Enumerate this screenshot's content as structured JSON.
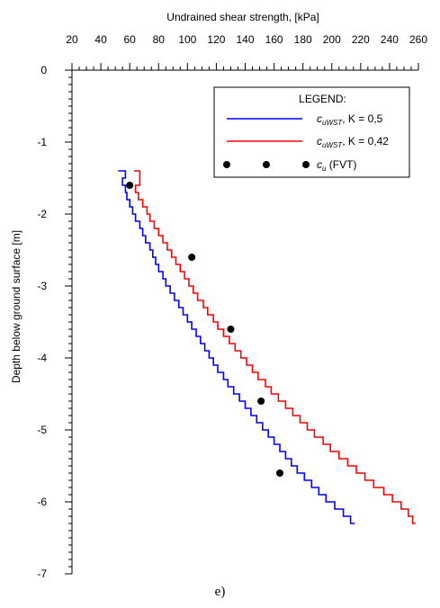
{
  "chart_data": {
    "type": "line",
    "title": "",
    "xlabel": "Undrained shear strength, [kPa]",
    "ylabel": "Depth below ground surface [m]",
    "xlim": [
      20,
      260
    ],
    "ylim": [
      -7,
      0
    ],
    "x_axis_position": "top",
    "x_ticks": [
      20,
      40,
      60,
      80,
      100,
      120,
      140,
      160,
      180,
      200,
      220,
      240,
      260
    ],
    "y_ticks": [
      0,
      -1,
      -2,
      -3,
      -4,
      -5,
      -6,
      -7
    ],
    "legend": {
      "title": "LEGEND:",
      "placement": "top-right"
    },
    "series": [
      {
        "name_main": "c",
        "name_sub": "uWST",
        "name_rest": ", K = 0,5",
        "color": "#0000ff",
        "style": "step-line",
        "points": [
          [
            52,
            -1.4
          ],
          [
            57,
            -1.4
          ],
          [
            57,
            -1.5
          ],
          [
            55,
            -1.5
          ],
          [
            55,
            -1.6
          ],
          [
            57,
            -1.6
          ],
          [
            57,
            -1.7
          ],
          [
            58,
            -1.7
          ],
          [
            58,
            -1.8
          ],
          [
            60,
            -1.8
          ],
          [
            60,
            -1.9
          ],
          [
            62,
            -1.9
          ],
          [
            62,
            -2.0
          ],
          [
            64,
            -2.0
          ],
          [
            64,
            -2.1
          ],
          [
            67,
            -2.1
          ],
          [
            67,
            -2.2
          ],
          [
            69,
            -2.2
          ],
          [
            69,
            -2.3
          ],
          [
            71,
            -2.3
          ],
          [
            71,
            -2.4
          ],
          [
            74,
            -2.4
          ],
          [
            74,
            -2.5
          ],
          [
            76,
            -2.5
          ],
          [
            76,
            -2.6
          ],
          [
            78,
            -2.6
          ],
          [
            78,
            -2.7
          ],
          [
            80,
            -2.7
          ],
          [
            80,
            -2.8
          ],
          [
            83,
            -2.8
          ],
          [
            83,
            -2.9
          ],
          [
            85,
            -2.9
          ],
          [
            85,
            -3.0
          ],
          [
            88,
            -3.0
          ],
          [
            88,
            -3.1
          ],
          [
            91,
            -3.1
          ],
          [
            91,
            -3.2
          ],
          [
            94,
            -3.2
          ],
          [
            94,
            -3.3
          ],
          [
            97,
            -3.3
          ],
          [
            97,
            -3.4
          ],
          [
            100,
            -3.4
          ],
          [
            100,
            -3.5
          ],
          [
            103,
            -3.5
          ],
          [
            103,
            -3.6
          ],
          [
            106,
            -3.6
          ],
          [
            106,
            -3.7
          ],
          [
            109,
            -3.7
          ],
          [
            109,
            -3.8
          ],
          [
            112,
            -3.8
          ],
          [
            112,
            -3.9
          ],
          [
            115,
            -3.9
          ],
          [
            115,
            -4.0
          ],
          [
            118,
            -4.0
          ],
          [
            118,
            -4.1
          ],
          [
            121,
            -4.1
          ],
          [
            121,
            -4.2
          ],
          [
            125,
            -4.2
          ],
          [
            125,
            -4.3
          ],
          [
            128,
            -4.3
          ],
          [
            128,
            -4.4
          ],
          [
            132,
            -4.4
          ],
          [
            132,
            -4.5
          ],
          [
            136,
            -4.5
          ],
          [
            136,
            -4.6
          ],
          [
            140,
            -4.6
          ],
          [
            140,
            -4.7
          ],
          [
            144,
            -4.7
          ],
          [
            144,
            -4.8
          ],
          [
            148,
            -4.8
          ],
          [
            148,
            -4.9
          ],
          [
            152,
            -4.9
          ],
          [
            152,
            -5.0
          ],
          [
            156,
            -5.0
          ],
          [
            156,
            -5.1
          ],
          [
            160,
            -5.1
          ],
          [
            160,
            -5.2
          ],
          [
            164,
            -5.2
          ],
          [
            164,
            -5.3
          ],
          [
            168,
            -5.3
          ],
          [
            168,
            -5.4
          ],
          [
            172,
            -5.4
          ],
          [
            172,
            -5.5
          ],
          [
            176,
            -5.5
          ],
          [
            176,
            -5.6
          ],
          [
            181,
            -5.6
          ],
          [
            181,
            -5.7
          ],
          [
            186,
            -5.7
          ],
          [
            186,
            -5.8
          ],
          [
            191,
            -5.8
          ],
          [
            191,
            -5.9
          ],
          [
            196,
            -5.9
          ],
          [
            196,
            -6.0
          ],
          [
            202,
            -6.0
          ],
          [
            202,
            -6.1
          ],
          [
            208,
            -6.1
          ],
          [
            208,
            -6.2
          ],
          [
            213,
            -6.2
          ],
          [
            213,
            -6.3
          ],
          [
            216,
            -6.3
          ]
        ]
      },
      {
        "name_main": "c",
        "name_sub": "uWST",
        "name_rest": ", K = 0,42",
        "color": "#ff0000",
        "style": "step-line",
        "points": [
          [
            63,
            -1.4
          ],
          [
            67,
            -1.4
          ],
          [
            67,
            -1.6
          ],
          [
            64,
            -1.6
          ],
          [
            64,
            -1.7
          ],
          [
            66,
            -1.7
          ],
          [
            66,
            -1.8
          ],
          [
            69,
            -1.8
          ],
          [
            69,
            -1.9
          ],
          [
            72,
            -1.9
          ],
          [
            72,
            -2.0
          ],
          [
            74,
            -2.0
          ],
          [
            74,
            -2.1
          ],
          [
            77,
            -2.1
          ],
          [
            77,
            -2.2
          ],
          [
            80,
            -2.2
          ],
          [
            80,
            -2.3
          ],
          [
            83,
            -2.3
          ],
          [
            83,
            -2.4
          ],
          [
            86,
            -2.4
          ],
          [
            86,
            -2.5
          ],
          [
            89,
            -2.5
          ],
          [
            89,
            -2.6
          ],
          [
            92,
            -2.6
          ],
          [
            92,
            -2.7
          ],
          [
            95,
            -2.7
          ],
          [
            95,
            -2.8
          ],
          [
            98,
            -2.8
          ],
          [
            98,
            -2.9
          ],
          [
            101,
            -2.9
          ],
          [
            101,
            -3.0
          ],
          [
            104,
            -3.0
          ],
          [
            104,
            -3.1
          ],
          [
            107,
            -3.1
          ],
          [
            107,
            -3.2
          ],
          [
            111,
            -3.2
          ],
          [
            111,
            -3.3
          ],
          [
            114,
            -3.3
          ],
          [
            114,
            -3.4
          ],
          [
            118,
            -3.4
          ],
          [
            118,
            -3.5
          ],
          [
            121,
            -3.5
          ],
          [
            121,
            -3.6
          ],
          [
            125,
            -3.6
          ],
          [
            125,
            -3.7
          ],
          [
            129,
            -3.7
          ],
          [
            129,
            -3.8
          ],
          [
            133,
            -3.8
          ],
          [
            133,
            -3.9
          ],
          [
            137,
            -3.9
          ],
          [
            137,
            -4.0
          ],
          [
            141,
            -4.0
          ],
          [
            141,
            -4.1
          ],
          [
            145,
            -4.1
          ],
          [
            145,
            -4.2
          ],
          [
            149,
            -4.2
          ],
          [
            149,
            -4.3
          ],
          [
            154,
            -4.3
          ],
          [
            154,
            -4.4
          ],
          [
            158,
            -4.4
          ],
          [
            158,
            -4.5
          ],
          [
            163,
            -4.5
          ],
          [
            163,
            -4.6
          ],
          [
            168,
            -4.6
          ],
          [
            168,
            -4.7
          ],
          [
            173,
            -4.7
          ],
          [
            173,
            -4.8
          ],
          [
            178,
            -4.8
          ],
          [
            178,
            -4.9
          ],
          [
            183,
            -4.9
          ],
          [
            183,
            -5.0
          ],
          [
            188,
            -5.0
          ],
          [
            188,
            -5.1
          ],
          [
            194,
            -5.1
          ],
          [
            194,
            -5.2
          ],
          [
            199,
            -5.2
          ],
          [
            199,
            -5.3
          ],
          [
            205,
            -5.3
          ],
          [
            205,
            -5.4
          ],
          [
            211,
            -5.4
          ],
          [
            211,
            -5.5
          ],
          [
            217,
            -5.5
          ],
          [
            217,
            -5.6
          ],
          [
            223,
            -5.6
          ],
          [
            223,
            -5.7
          ],
          [
            229,
            -5.7
          ],
          [
            229,
            -5.8
          ],
          [
            236,
            -5.8
          ],
          [
            236,
            -5.9
          ],
          [
            242,
            -5.9
          ],
          [
            242,
            -6.0
          ],
          [
            248,
            -6.0
          ],
          [
            248,
            -6.1
          ],
          [
            253,
            -6.1
          ],
          [
            253,
            -6.2
          ],
          [
            256,
            -6.2
          ],
          [
            256,
            -6.3
          ],
          [
            258,
            -6.3
          ]
        ]
      },
      {
        "name_main": "c",
        "name_sub": "u",
        "name_rest": " (FVT)",
        "color": "#000000",
        "style": "markers",
        "points": [
          [
            60,
            -1.6
          ],
          [
            103,
            -2.6
          ],
          [
            130,
            -3.6
          ],
          [
            151,
            -4.6
          ],
          [
            164,
            -5.6
          ]
        ]
      }
    ]
  },
  "caption": "e)"
}
